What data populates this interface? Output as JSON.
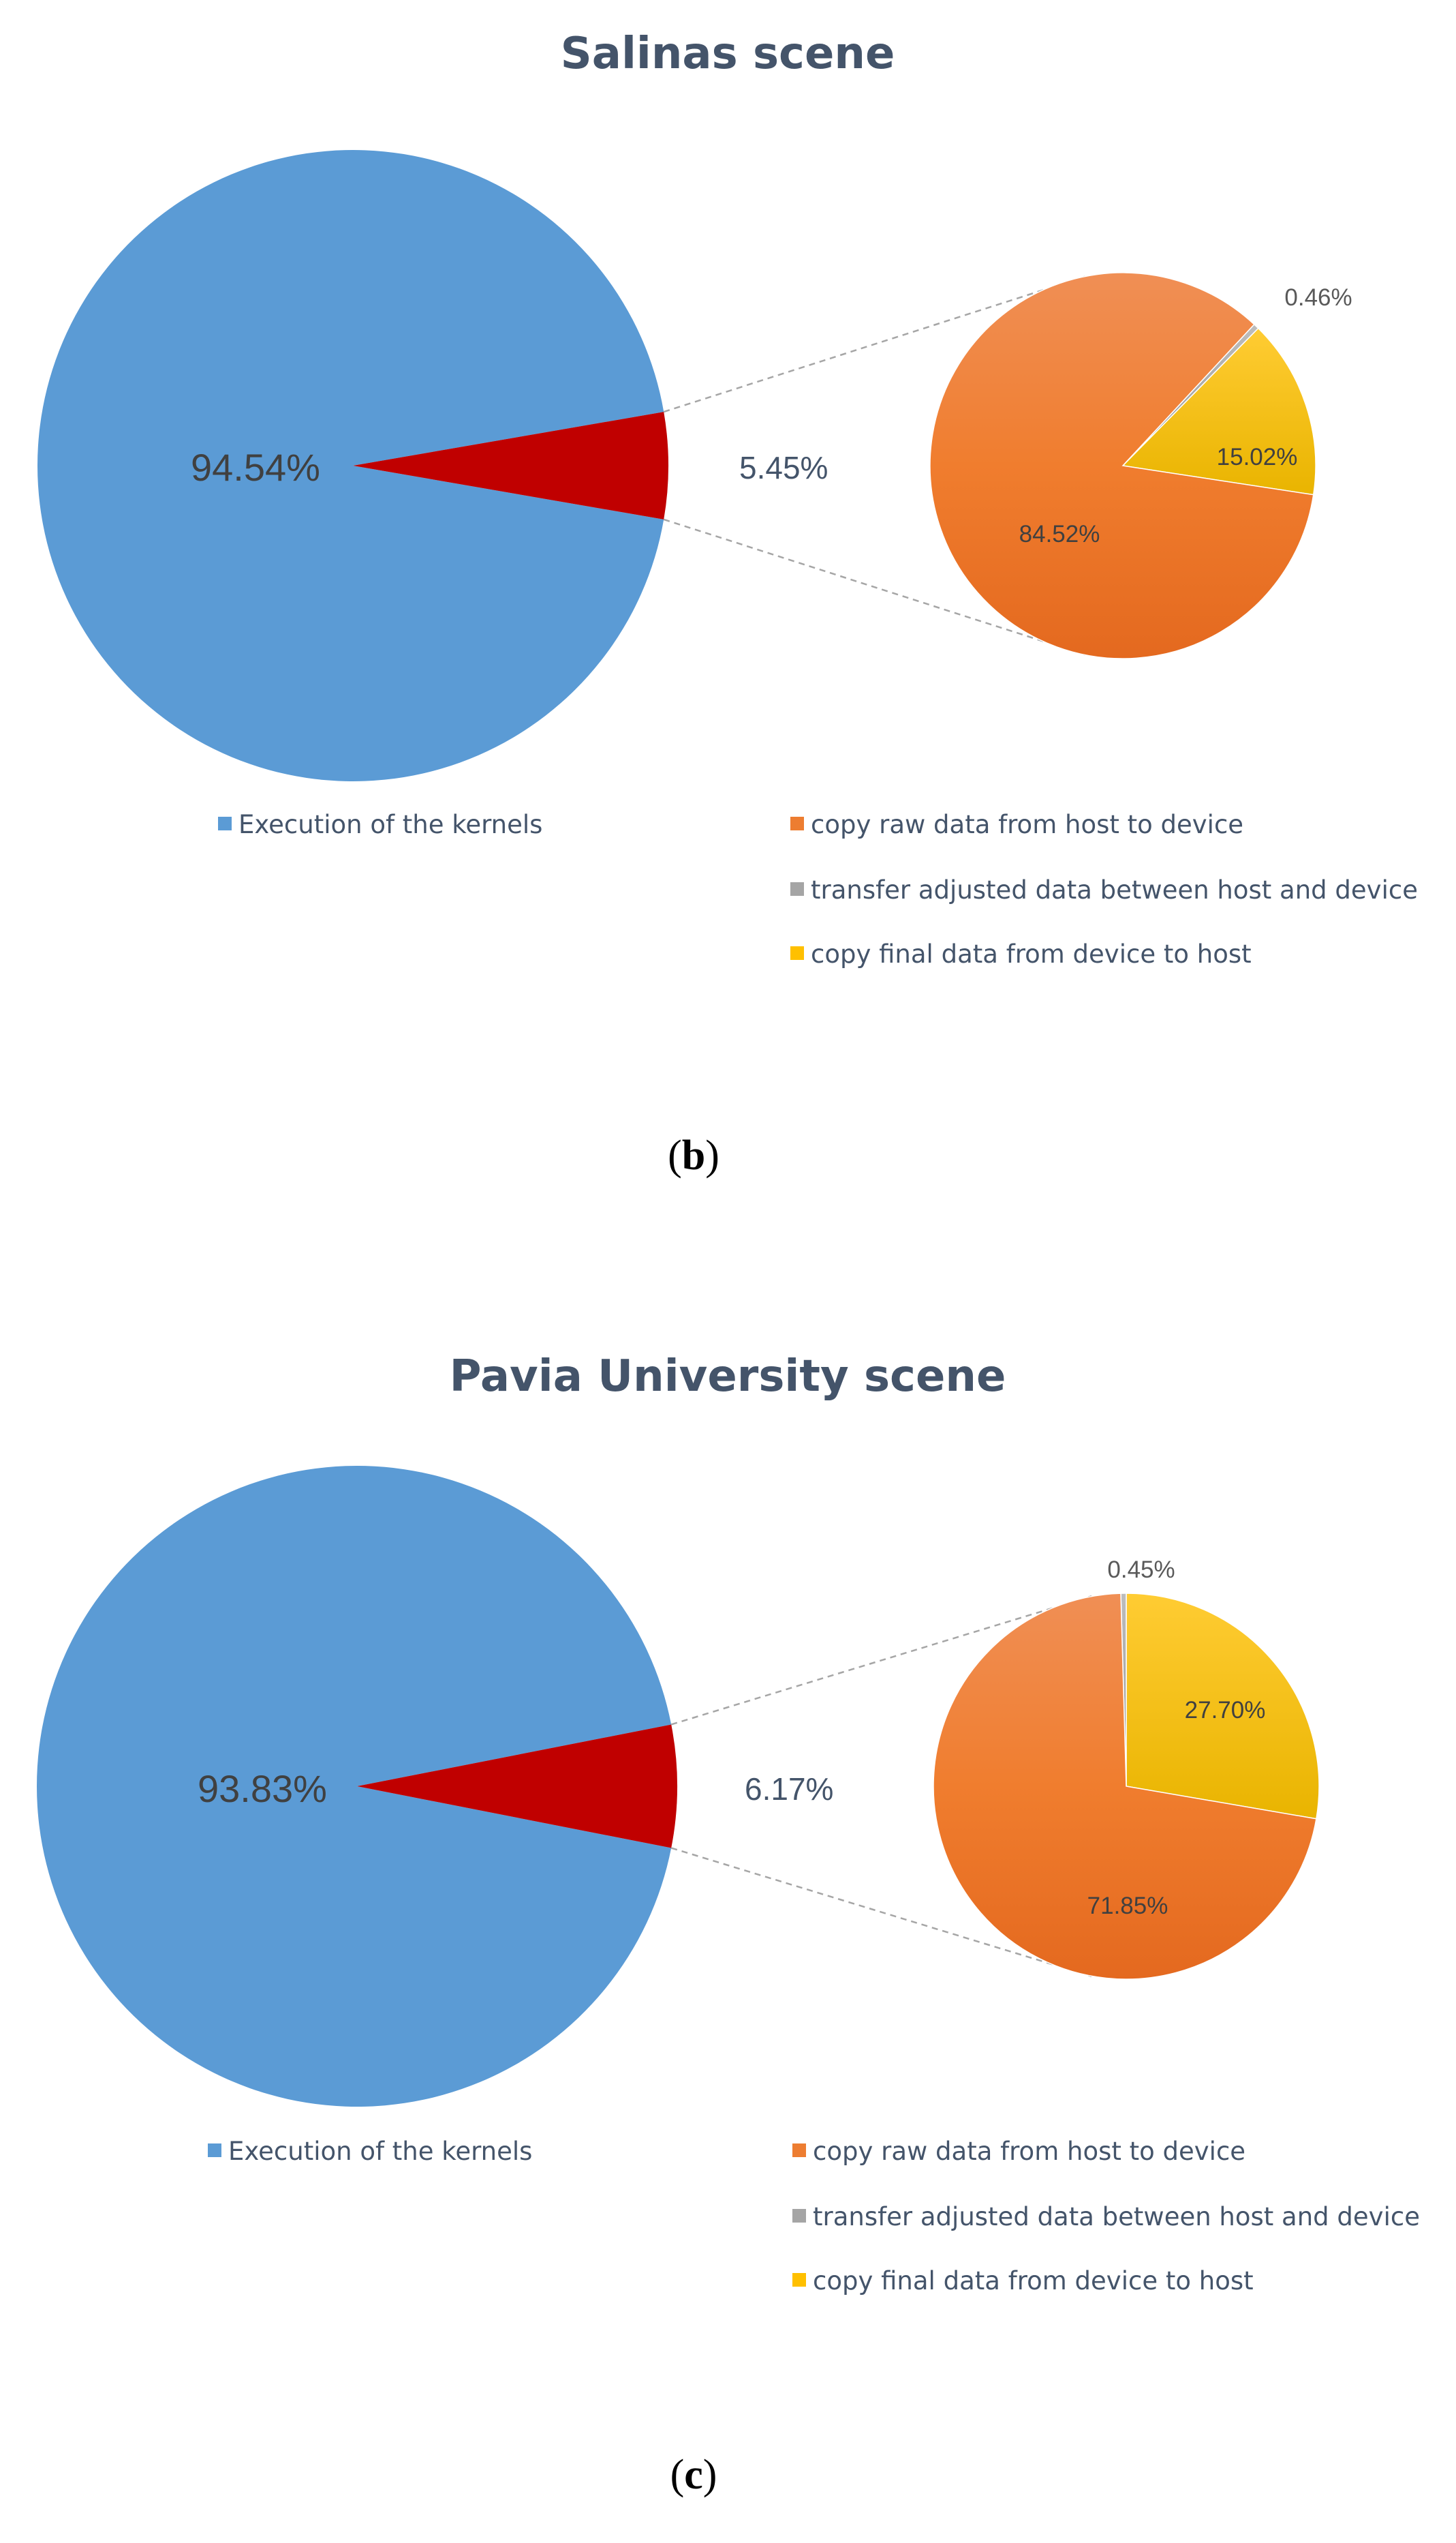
{
  "colors": {
    "execution": "#5b9bd5",
    "transfer_total": "#c00000",
    "copy_raw": "#ed7d31",
    "transfer_adjusted": "#a5a5a5",
    "copy_final": "#ffc000",
    "title": "#44546a"
  },
  "chart_data": [
    {
      "type": "pie",
      "chart_subtype": "pie-of-pie",
      "title": "Salinas scene",
      "panel_label": "b",
      "main_pie": {
        "slices": [
          {
            "name": "Execution of the kernels",
            "value": 94.54,
            "label": "94.54%"
          },
          {
            "name": "",
            "value": 5.45,
            "label": "5.45%"
          }
        ]
      },
      "secondary_pie": {
        "slices": [
          {
            "name": "copy raw data from host to device",
            "value": 84.52,
            "label": "84.52%"
          },
          {
            "name": "transfer adjusted data between host and device",
            "value": 0.46,
            "label": "0.46%"
          },
          {
            "name": "copy final data from device to host",
            "value": 15.02,
            "label": "15.02%"
          }
        ]
      },
      "legend": [
        "Execution of the kernels",
        "copy raw data from host to device",
        "transfer adjusted data between host and device",
        "copy final data from device to host"
      ]
    },
    {
      "type": "pie",
      "chart_subtype": "pie-of-pie",
      "title": "Pavia University scene",
      "panel_label": "c",
      "main_pie": {
        "slices": [
          {
            "name": "Execution of the kernels",
            "value": 93.83,
            "label": "93.83%"
          },
          {
            "name": "",
            "value": 6.17,
            "label": "6.17%"
          }
        ]
      },
      "secondary_pie": {
        "slices": [
          {
            "name": "copy raw data from host to device",
            "value": 71.85,
            "label": "71.85%"
          },
          {
            "name": "transfer adjusted data between host and device",
            "value": 0.45,
            "label": "0.45%"
          },
          {
            "name": "copy final data from device to host",
            "value": 27.7,
            "label": "27.70%"
          }
        ]
      },
      "legend": [
        "Execution of the kernels",
        "copy raw data from host to device",
        "transfer adjusted data between host and device",
        "copy final data from device to host"
      ]
    }
  ]
}
